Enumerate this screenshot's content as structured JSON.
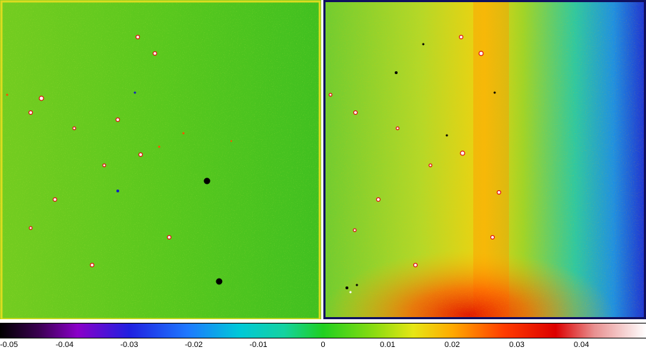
{
  "colormap": {
    "stops": [
      {
        "t": 0.0,
        "color": "#000000"
      },
      {
        "t": 0.06,
        "color": "#3a0050"
      },
      {
        "t": 0.12,
        "color": "#8a00c8"
      },
      {
        "t": 0.2,
        "color": "#2020e0"
      },
      {
        "t": 0.29,
        "color": "#1e78ff"
      },
      {
        "t": 0.37,
        "color": "#00c8d8"
      },
      {
        "t": 0.44,
        "color": "#14d2a0"
      },
      {
        "t": 0.5,
        "color": "#20d020"
      },
      {
        "t": 0.58,
        "color": "#8cdc10"
      },
      {
        "t": 0.64,
        "color": "#e6e614"
      },
      {
        "t": 0.7,
        "color": "#ffaa00"
      },
      {
        "t": 0.78,
        "color": "#ff3c00"
      },
      {
        "t": 0.86,
        "color": "#dc0000"
      },
      {
        "t": 0.92,
        "color": "#e89090"
      },
      {
        "t": 1.0,
        "color": "#ffffff"
      }
    ],
    "ticks": [
      {
        "label": "-0.05",
        "fraction": 0.0
      },
      {
        "label": "-0.04",
        "fraction": 0.1
      },
      {
        "label": "-0.03",
        "fraction": 0.2
      },
      {
        "label": "-0.02",
        "fraction": 0.3
      },
      {
        "label": "-0.01",
        "fraction": 0.4
      },
      {
        "label": "0",
        "fraction": 0.5
      },
      {
        "label": "0.01",
        "fraction": 0.6
      },
      {
        "label": "0.02",
        "fraction": 0.7
      },
      {
        "label": "0.03",
        "fraction": 0.8
      },
      {
        "label": "0.04",
        "fraction": 0.9
      }
    ]
  },
  "panels": [
    {
      "name": "left-residual-image",
      "base_color": "#5ac81e",
      "frame_color": "#dcdc20"
    },
    {
      "name": "right-residual-image",
      "base_color": "#8cd232",
      "frame_color": "#0000a0"
    }
  ]
}
